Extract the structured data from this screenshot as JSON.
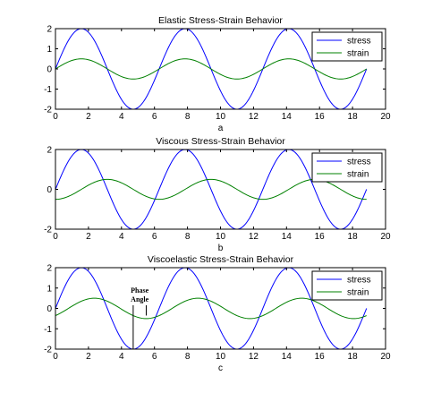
{
  "chart_data": [
    {
      "type": "line",
      "title": "Elastic Stress-Strain Behavior",
      "xlabel": "a",
      "ylabel": "",
      "xlim": [
        0,
        20
      ],
      "ylim": [
        -2,
        2
      ],
      "xticks": [
        "0",
        "2",
        "4",
        "6",
        "8",
        "10",
        "12",
        "14",
        "16",
        "18",
        "20"
      ],
      "yticks": [
        "2",
        "1",
        "0",
        "-1",
        "-2"
      ],
      "legend_position": "top-right",
      "grid": false,
      "series": [
        {
          "name": "stress",
          "color": "#0000ff",
          "function": "2*sin(t)",
          "amplitude": 2,
          "phase": 0,
          "x_range": [
            0,
            18.85
          ]
        },
        {
          "name": "strain",
          "color": "#008000",
          "function": "0.5*sin(t)",
          "amplitude": 0.5,
          "phase": 0,
          "x_range": [
            0,
            18.85
          ]
        }
      ]
    },
    {
      "type": "line",
      "title": "Viscous Stress-Strain Behavior",
      "xlabel": "b",
      "ylabel": "",
      "xlim": [
        0,
        20
      ],
      "ylim": [
        -2,
        2
      ],
      "xticks": [
        "0",
        "2",
        "4",
        "6",
        "8",
        "10",
        "12",
        "14",
        "16",
        "18",
        "20"
      ],
      "yticks": [
        "2",
        "0",
        "-2"
      ],
      "legend_position": "top-right",
      "grid": false,
      "series": [
        {
          "name": "stress",
          "color": "#0000ff",
          "function": "2*sin(t)",
          "amplitude": 2,
          "phase": 0,
          "x_range": [
            0,
            18.85
          ]
        },
        {
          "name": "strain",
          "color": "#008000",
          "function": "0.5*sin(t - pi/2)",
          "amplitude": 0.5,
          "phase": 1.5708,
          "x_range": [
            0,
            18.85
          ]
        }
      ]
    },
    {
      "type": "line",
      "title": "Viscoelastic Stress-Strain Behavior",
      "xlabel": "c",
      "ylabel": "",
      "xlim": [
        0,
        20
      ],
      "ylim": [
        -2,
        2
      ],
      "xticks": [
        "0",
        "2",
        "4",
        "6",
        "8",
        "10",
        "12",
        "14",
        "16",
        "18",
        "20"
      ],
      "yticks": [
        "2",
        "1",
        "0",
        "-1",
        "-2"
      ],
      "legend_position": "top-right",
      "grid": false,
      "series": [
        {
          "name": "stress",
          "color": "#0000ff",
          "function": "2*sin(t)",
          "amplitude": 2,
          "phase": 0,
          "x_range": [
            0,
            18.85
          ]
        },
        {
          "name": "strain",
          "color": "#008000",
          "function": "0.5*sin(t - 0.785)",
          "amplitude": 0.5,
          "phase": 0.785,
          "x_range": [
            0,
            18.85
          ]
        }
      ],
      "annotation": {
        "text_line1": "Phase",
        "text_line2": "Angle",
        "marker_x": [
          4.71,
          5.5
        ]
      }
    }
  ]
}
